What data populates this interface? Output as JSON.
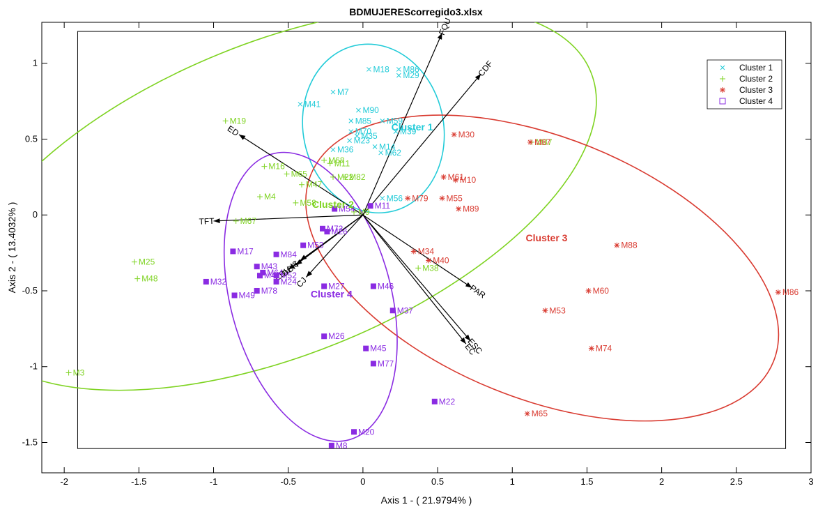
{
  "chart_data": {
    "type": "scatter",
    "title": "BDMUJEREScorregido3.xlsx",
    "xlabel": "Axis 1 - ( 21.9794% )",
    "ylabel": "Axis 2 - ( 13.4032% )",
    "xlim": [
      -2.15,
      3.0
    ],
    "ylim": [
      -1.7,
      1.27
    ],
    "xticks": [
      -2,
      -1.5,
      -1,
      -0.5,
      0,
      0.5,
      1,
      1.5,
      2,
      2.5,
      3
    ],
    "yticks": [
      -1.5,
      -1,
      -0.5,
      0,
      0.5,
      1
    ],
    "legend_position": "top-right",
    "inner_box": {
      "x": [
        -1.91,
        2.83
      ],
      "y": [
        -1.54,
        1.21
      ]
    },
    "series": [
      {
        "name": "Cluster 1",
        "marker": "x",
        "color": "#22cbd8",
        "label": {
          "text": "Cluster 1",
          "x": 0.19,
          "y": 0.58
        },
        "ellipse": {
          "cx": 0.07,
          "cy": 0.57,
          "rx": 0.47,
          "ry": 0.56,
          "angle": 12
        },
        "points": [
          {
            "id": "M18",
            "x": 0.04,
            "y": 0.96
          },
          {
            "id": "M86",
            "x": 0.24,
            "y": 0.96
          },
          {
            "id": "M29",
            "x": 0.24,
            "y": 0.92
          },
          {
            "id": "M7",
            "x": -0.2,
            "y": 0.81
          },
          {
            "id": "M41",
            "x": -0.42,
            "y": 0.73
          },
          {
            "id": "M90",
            "x": -0.03,
            "y": 0.69
          },
          {
            "id": "M85",
            "x": -0.08,
            "y": 0.62
          },
          {
            "id": "M59",
            "x": 0.13,
            "y": 0.62
          },
          {
            "id": "M39",
            "x": 0.22,
            "y": 0.55
          },
          {
            "id": "M70",
            "x": -0.08,
            "y": 0.55
          },
          {
            "id": "M35",
            "x": -0.04,
            "y": 0.52
          },
          {
            "id": "M23",
            "x": -0.09,
            "y": 0.49
          },
          {
            "id": "M14",
            "x": 0.08,
            "y": 0.45
          },
          {
            "id": "M62",
            "x": 0.12,
            "y": 0.41
          },
          {
            "id": "M36",
            "x": -0.2,
            "y": 0.43
          },
          {
            "id": "M56",
            "x": 0.13,
            "y": 0.11
          }
        ]
      },
      {
        "name": "Cluster 2",
        "marker": "+",
        "color": "#7ed321",
        "label": {
          "text": "Cluster 2",
          "x": -0.34,
          "y": 0.07
        },
        "ellipse": {
          "cx": -0.56,
          "cy": 0.11,
          "rx": 2.25,
          "ry": 1.03,
          "angle": 22
        },
        "points": [
          {
            "id": "M19",
            "x": -0.92,
            "y": 0.62
          },
          {
            "id": "M16",
            "x": -0.66,
            "y": 0.32
          },
          {
            "id": "M68",
            "x": -0.26,
            "y": 0.36
          },
          {
            "id": "M11",
            "x": -0.22,
            "y": 0.34
          },
          {
            "id": "M65",
            "x": -0.51,
            "y": 0.27
          },
          {
            "id": "M47",
            "x": -0.41,
            "y": 0.2
          },
          {
            "id": "M22",
            "x": -0.2,
            "y": 0.25
          },
          {
            "id": "M82",
            "x": -0.12,
            "y": 0.25
          },
          {
            "id": "M4",
            "x": -0.69,
            "y": 0.12
          },
          {
            "id": "M58",
            "x": -0.45,
            "y": 0.08
          },
          {
            "id": "M9",
            "x": -0.06,
            "y": 0.02
          },
          {
            "id": "M67",
            "x": -0.85,
            "y": -0.04
          },
          {
            "id": "M25",
            "x": -1.53,
            "y": -0.31
          },
          {
            "id": "M48",
            "x": -1.51,
            "y": -0.42
          },
          {
            "id": "M38",
            "x": 0.37,
            "y": -0.35
          },
          {
            "id": "M87",
            "x": 1.13,
            "y": 0.48
          },
          {
            "id": "M3",
            "x": -1.97,
            "y": -1.04
          }
        ]
      },
      {
        "name": "Cluster 3",
        "marker": "*",
        "color": "#d93b31",
        "label": {
          "text": "Cluster 3",
          "x": 1.09,
          "y": -0.15
        },
        "ellipse": {
          "cx": 1.2,
          "cy": -0.35,
          "rx": 1.67,
          "ry": 0.86,
          "angle": -22
        },
        "points": [
          {
            "id": "M30",
            "x": 0.61,
            "y": 0.53
          },
          {
            "id": "M87",
            "x": 1.12,
            "y": 0.48
          },
          {
            "id": "M61",
            "x": 0.54,
            "y": 0.25
          },
          {
            "id": "M10",
            "x": 0.62,
            "y": 0.23
          },
          {
            "id": "M79",
            "x": 0.3,
            "y": 0.11
          },
          {
            "id": "M55",
            "x": 0.53,
            "y": 0.11
          },
          {
            "id": "M89",
            "x": 0.64,
            "y": 0.04
          },
          {
            "id": "M34",
            "x": 0.34,
            "y": -0.24
          },
          {
            "id": "M40",
            "x": 0.44,
            "y": -0.3
          },
          {
            "id": "M88",
            "x": 1.7,
            "y": -0.2
          },
          {
            "id": "M60",
            "x": 1.51,
            "y": -0.5
          },
          {
            "id": "M53",
            "x": 1.22,
            "y": -0.63
          },
          {
            "id": "M74",
            "x": 1.53,
            "y": -0.88
          },
          {
            "id": "M86",
            "x": 2.78,
            "y": -0.51
          },
          {
            "id": "M65",
            "x": 1.1,
            "y": -1.31
          }
        ]
      },
      {
        "name": "Cluster 4",
        "marker": "square",
        "color": "#8a2be2",
        "label": {
          "text": "Cluster 4",
          "x": -0.35,
          "y": -0.52
        },
        "ellipse": {
          "cx": -0.35,
          "cy": -0.54,
          "rx": 0.99,
          "ry": 0.53,
          "angle": -75
        },
        "points": [
          {
            "id": "M11",
            "x": 0.05,
            "y": 0.06
          },
          {
            "id": "M54",
            "x": -0.19,
            "y": 0.04
          },
          {
            "id": "M72",
            "x": -0.27,
            "y": -0.09
          },
          {
            "id": "M26",
            "x": -0.24,
            "y": -0.11
          },
          {
            "id": "M17",
            "x": -0.87,
            "y": -0.24
          },
          {
            "id": "M53",
            "x": -0.4,
            "y": -0.2
          },
          {
            "id": "M84",
            "x": -0.58,
            "y": -0.26
          },
          {
            "id": "M43",
            "x": -0.71,
            "y": -0.34
          },
          {
            "id": "M64",
            "x": -0.67,
            "y": -0.38
          },
          {
            "id": "M42",
            "x": -0.69,
            "y": -0.4
          },
          {
            "id": "M52",
            "x": -0.58,
            "y": -0.4
          },
          {
            "id": "M24",
            "x": -0.58,
            "y": -0.44
          },
          {
            "id": "M32",
            "x": -1.05,
            "y": -0.44
          },
          {
            "id": "M49",
            "x": -0.86,
            "y": -0.53
          },
          {
            "id": "M78",
            "x": -0.71,
            "y": -0.5
          },
          {
            "id": "M27",
            "x": -0.26,
            "y": -0.47
          },
          {
            "id": "M46",
            "x": 0.07,
            "y": -0.47
          },
          {
            "id": "M37",
            "x": 0.2,
            "y": -0.63
          },
          {
            "id": "M26",
            "x": -0.26,
            "y": -0.8
          },
          {
            "id": "M45",
            "x": 0.02,
            "y": -0.88
          },
          {
            "id": "M77",
            "x": 0.07,
            "y": -0.98
          },
          {
            "id": "M22",
            "x": 0.48,
            "y": -1.23
          },
          {
            "id": "M20",
            "x": -0.06,
            "y": -1.43
          },
          {
            "id": "M8",
            "x": -0.21,
            "y": -1.52
          }
        ]
      }
    ],
    "vectors": [
      {
        "name": "FQU",
        "x": 0.53,
        "y": 1.2
      },
      {
        "name": "CDF",
        "x": 0.79,
        "y": 0.93
      },
      {
        "name": "ED",
        "x": -0.83,
        "y": 0.53
      },
      {
        "name": "TFT",
        "x": -1.0,
        "y": -0.04
      },
      {
        "name": "PAR",
        "x": 0.73,
        "y": -0.48
      },
      {
        "name": "ESC",
        "x": 0.72,
        "y": -0.83
      },
      {
        "name": "EC",
        "x": 0.69,
        "y": -0.85
      },
      {
        "name": "CJ",
        "x": -0.38,
        "y": -0.41
      },
      {
        "name": "DCH",
        "x": -0.45,
        "y": -0.33
      },
      {
        "name": "EDU",
        "x": -0.5,
        "y": -0.36
      },
      {
        "name": "IS",
        "x": -0.42,
        "y": -0.3
      }
    ]
  }
}
